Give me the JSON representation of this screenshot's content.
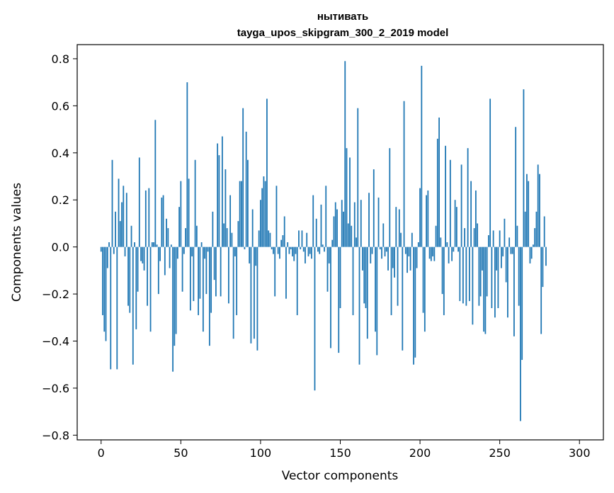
{
  "chart_data": {
    "type": "bar",
    "title": "нытивать",
    "subtitle": "tayga_upos_skipgram_300_2_2019 model",
    "xlabel": "Vector components",
    "ylabel": "Components values",
    "xlim": [
      -15,
      315
    ],
    "ylim": [
      -0.82,
      0.86
    ],
    "xticks": [
      0,
      50,
      100,
      150,
      200,
      250,
      300
    ],
    "xtick_labels": [
      "0",
      "50",
      "100",
      "150",
      "200",
      "250",
      "300"
    ],
    "yticks": [
      -0.8,
      -0.6,
      -0.4,
      -0.2,
      0.0,
      0.2,
      0.4,
      0.6,
      0.8
    ],
    "ytick_labels": [
      "−0.8",
      "−0.6",
      "−0.4",
      "−0.2",
      "0.0",
      "0.2",
      "0.4",
      "0.6",
      "0.8"
    ],
    "bar_color": "#1f77b4",
    "values": [
      -0.02,
      -0.29,
      -0.36,
      -0.4,
      -0.09,
      0.02,
      -0.52,
      0.37,
      -0.03,
      0.15,
      -0.52,
      0.29,
      0.11,
      0.19,
      0.26,
      -0.04,
      0.23,
      -0.25,
      -0.28,
      0.09,
      -0.5,
      0.02,
      -0.35,
      -0.19,
      0.38,
      -0.06,
      -0.07,
      -0.1,
      0.24,
      -0.25,
      0.25,
      -0.36,
      0.02,
      0.02,
      0.54,
      0.01,
      -0.2,
      -0.06,
      0.21,
      0.22,
      -0.12,
      0.12,
      0.08,
      -0.09,
      0.01,
      -0.53,
      -0.42,
      -0.37,
      -0.05,
      0.17,
      0.28,
      -0.19,
      -0.03,
      0.08,
      0.7,
      0.29,
      -0.27,
      -0.04,
      -0.23,
      0.37,
      0.09,
      -0.29,
      -0.22,
      0.02,
      -0.36,
      -0.05,
      -0.2,
      -0.02,
      -0.42,
      -0.28,
      0.15,
      -0.14,
      -0.21,
      0.44,
      0.39,
      -0.21,
      0.47,
      0.1,
      0.33,
      0.08,
      -0.24,
      0.22,
      0.06,
      -0.39,
      -0.04,
      -0.29,
      0.11,
      0.28,
      0.28,
      0.59,
      -0.01,
      0.49,
      0.37,
      -0.07,
      -0.41,
      0.16,
      -0.39,
      -0.08,
      -0.44,
      0.07,
      0.2,
      0.25,
      0.3,
      0.28,
      0.63,
      0.07,
      0.06,
      -0.01,
      -0.03,
      -0.21,
      0.26,
      -0.03,
      -0.05,
      0.03,
      0.05,
      0.13,
      -0.22,
      0.02,
      -0.03,
      -0.01,
      -0.04,
      -0.06,
      -0.03,
      -0.29,
      0.07,
      -0.01,
      0.07,
      -0.02,
      -0.07,
      0.06,
      -0.04,
      -0.03,
      -0.05,
      0.22,
      -0.61,
      0.12,
      -0.02,
      -0.03,
      0.18,
      0.01,
      -0.02,
      0.26,
      -0.19,
      -0.07,
      -0.43,
      0.03,
      0.13,
      0.19,
      0.16,
      -0.45,
      -0.26,
      0.2,
      0.15,
      0.79,
      0.42,
      0.1,
      0.38,
      0.09,
      -0.29,
      0.19,
      0.04,
      0.59,
      -0.5,
      0.2,
      -0.1,
      -0.24,
      -0.26,
      -0.39,
      0.23,
      -0.07,
      -0.03,
      0.33,
      -0.36,
      -0.46,
      0.21,
      -0.01,
      -0.05,
      0.1,
      -0.04,
      -0.02,
      -0.1,
      0.42,
      -0.29,
      -0.09,
      -0.13,
      0.17,
      -0.25,
      0.16,
      0.06,
      -0.44,
      0.62,
      -0.03,
      -0.11,
      -0.04,
      -0.1,
      0.06,
      -0.5,
      -0.47,
      -0.09,
      0.02,
      0.25,
      0.77,
      -0.28,
      -0.36,
      0.22,
      0.24,
      -0.05,
      -0.06,
      -0.04,
      -0.06,
      0.09,
      0.46,
      0.55,
      0.04,
      -0.2,
      -0.29,
      0.43,
      0.02,
      -0.07,
      0.37,
      -0.06,
      -0.02,
      0.2,
      0.17,
      -0.02,
      -0.23,
      0.35,
      -0.24,
      0.08,
      -0.25,
      0.42,
      -0.23,
      0.28,
      -0.33,
      0.08,
      0.24,
      0.1,
      -0.25,
      -0.21,
      -0.1,
      -0.36,
      -0.37,
      -0.21,
      0.05,
      0.63,
      -0.26,
      0.07,
      -0.3,
      -0.1,
      -0.26,
      0.07,
      -0.09,
      -0.04,
      0.12,
      -0.15,
      -0.3,
      0.04,
      -0.03,
      -0.03,
      -0.38,
      0.51,
      0.09,
      -0.25,
      -0.74,
      -0.48,
      0.67,
      0.15,
      0.31,
      0.28,
      -0.07,
      -0.05,
      0.01,
      0.08,
      0.15,
      0.35,
      0.31,
      -0.37,
      -0.17,
      0.13,
      -0.08
    ]
  }
}
